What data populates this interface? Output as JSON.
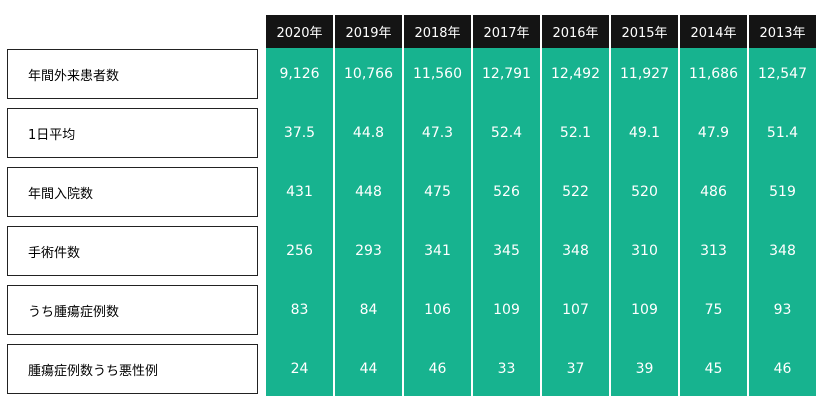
{
  "table": {
    "years": [
      "2020年",
      "2019年",
      "2018年",
      "2017年",
      "2016年",
      "2015年",
      "2014年",
      "2013年"
    ],
    "rows": [
      {
        "label": "年間外来患者数",
        "values": [
          "9,126",
          "10,766",
          "11,560",
          "12,791",
          "12,492",
          "11,927",
          "11,686",
          "12,547"
        ]
      },
      {
        "label": "1日平均",
        "values": [
          "37.5",
          "44.8",
          "47.3",
          "52.4",
          "52.1",
          "49.1",
          "47.9",
          "51.4"
        ]
      },
      {
        "label": "年間入院数",
        "values": [
          "431",
          "448",
          "475",
          "526",
          "522",
          "520",
          "486",
          "519"
        ]
      },
      {
        "label": "手術件数",
        "values": [
          "256",
          "293",
          "341",
          "345",
          "348",
          "310",
          "313",
          "348"
        ]
      },
      {
        "label": "うち腫瘍症例数",
        "values": [
          "83",
          "84",
          "106",
          "109",
          "107",
          "109",
          "75",
          "93"
        ]
      },
      {
        "label": "腫瘍症例数うち悪性例",
        "values": [
          "24",
          "44",
          "46",
          "33",
          "37",
          "39",
          "45",
          "46"
        ]
      }
    ]
  },
  "colors": {
    "header_bg": "#141414",
    "cell_bg": "#17b38f",
    "cell_text": "#ffffff"
  }
}
